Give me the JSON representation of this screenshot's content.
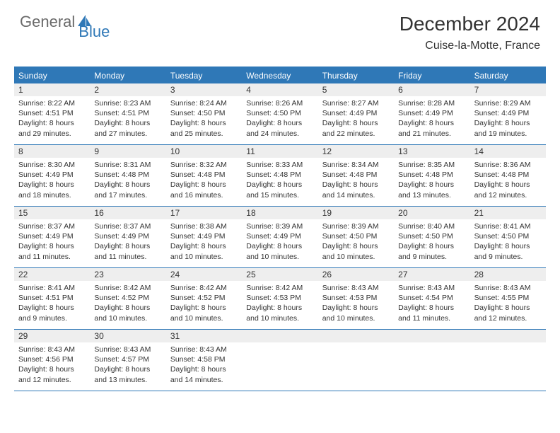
{
  "logo": {
    "text1": "General",
    "text2": "Blue"
  },
  "title": "December 2024",
  "location": "Cuise-la-Motte, France",
  "colors": {
    "header_bg": "#2f78b7",
    "header_text": "#ffffff",
    "daynum_bg": "#eeeeee",
    "border": "#2f78b7",
    "body_text": "#333333",
    "logo_gray": "#6a6a6a",
    "logo_blue": "#2f78b7"
  },
  "day_names": [
    "Sunday",
    "Monday",
    "Tuesday",
    "Wednesday",
    "Thursday",
    "Friday",
    "Saturday"
  ],
  "weeks": [
    [
      {
        "n": "1",
        "sr": "8:22 AM",
        "ss": "4:51 PM",
        "dl": "8 hours and 29 minutes."
      },
      {
        "n": "2",
        "sr": "8:23 AM",
        "ss": "4:51 PM",
        "dl": "8 hours and 27 minutes."
      },
      {
        "n": "3",
        "sr": "8:24 AM",
        "ss": "4:50 PM",
        "dl": "8 hours and 25 minutes."
      },
      {
        "n": "4",
        "sr": "8:26 AM",
        "ss": "4:50 PM",
        "dl": "8 hours and 24 minutes."
      },
      {
        "n": "5",
        "sr": "8:27 AM",
        "ss": "4:49 PM",
        "dl": "8 hours and 22 minutes."
      },
      {
        "n": "6",
        "sr": "8:28 AM",
        "ss": "4:49 PM",
        "dl": "8 hours and 21 minutes."
      },
      {
        "n": "7",
        "sr": "8:29 AM",
        "ss": "4:49 PM",
        "dl": "8 hours and 19 minutes."
      }
    ],
    [
      {
        "n": "8",
        "sr": "8:30 AM",
        "ss": "4:49 PM",
        "dl": "8 hours and 18 minutes."
      },
      {
        "n": "9",
        "sr": "8:31 AM",
        "ss": "4:48 PM",
        "dl": "8 hours and 17 minutes."
      },
      {
        "n": "10",
        "sr": "8:32 AM",
        "ss": "4:48 PM",
        "dl": "8 hours and 16 minutes."
      },
      {
        "n": "11",
        "sr": "8:33 AM",
        "ss": "4:48 PM",
        "dl": "8 hours and 15 minutes."
      },
      {
        "n": "12",
        "sr": "8:34 AM",
        "ss": "4:48 PM",
        "dl": "8 hours and 14 minutes."
      },
      {
        "n": "13",
        "sr": "8:35 AM",
        "ss": "4:48 PM",
        "dl": "8 hours and 13 minutes."
      },
      {
        "n": "14",
        "sr": "8:36 AM",
        "ss": "4:48 PM",
        "dl": "8 hours and 12 minutes."
      }
    ],
    [
      {
        "n": "15",
        "sr": "8:37 AM",
        "ss": "4:49 PM",
        "dl": "8 hours and 11 minutes."
      },
      {
        "n": "16",
        "sr": "8:37 AM",
        "ss": "4:49 PM",
        "dl": "8 hours and 11 minutes."
      },
      {
        "n": "17",
        "sr": "8:38 AM",
        "ss": "4:49 PM",
        "dl": "8 hours and 10 minutes."
      },
      {
        "n": "18",
        "sr": "8:39 AM",
        "ss": "4:49 PM",
        "dl": "8 hours and 10 minutes."
      },
      {
        "n": "19",
        "sr": "8:39 AM",
        "ss": "4:50 PM",
        "dl": "8 hours and 10 minutes."
      },
      {
        "n": "20",
        "sr": "8:40 AM",
        "ss": "4:50 PM",
        "dl": "8 hours and 9 minutes."
      },
      {
        "n": "21",
        "sr": "8:41 AM",
        "ss": "4:50 PM",
        "dl": "8 hours and 9 minutes."
      }
    ],
    [
      {
        "n": "22",
        "sr": "8:41 AM",
        "ss": "4:51 PM",
        "dl": "8 hours and 9 minutes."
      },
      {
        "n": "23",
        "sr": "8:42 AM",
        "ss": "4:52 PM",
        "dl": "8 hours and 10 minutes."
      },
      {
        "n": "24",
        "sr": "8:42 AM",
        "ss": "4:52 PM",
        "dl": "8 hours and 10 minutes."
      },
      {
        "n": "25",
        "sr": "8:42 AM",
        "ss": "4:53 PM",
        "dl": "8 hours and 10 minutes."
      },
      {
        "n": "26",
        "sr": "8:43 AM",
        "ss": "4:53 PM",
        "dl": "8 hours and 10 minutes."
      },
      {
        "n": "27",
        "sr": "8:43 AM",
        "ss": "4:54 PM",
        "dl": "8 hours and 11 minutes."
      },
      {
        "n": "28",
        "sr": "8:43 AM",
        "ss": "4:55 PM",
        "dl": "8 hours and 12 minutes."
      }
    ],
    [
      {
        "n": "29",
        "sr": "8:43 AM",
        "ss": "4:56 PM",
        "dl": "8 hours and 12 minutes."
      },
      {
        "n": "30",
        "sr": "8:43 AM",
        "ss": "4:57 PM",
        "dl": "8 hours and 13 minutes."
      },
      {
        "n": "31",
        "sr": "8:43 AM",
        "ss": "4:58 PM",
        "dl": "8 hours and 14 minutes."
      },
      null,
      null,
      null,
      null
    ]
  ],
  "labels": {
    "sunrise": "Sunrise: ",
    "sunset": "Sunset: ",
    "daylight": "Daylight: "
  }
}
